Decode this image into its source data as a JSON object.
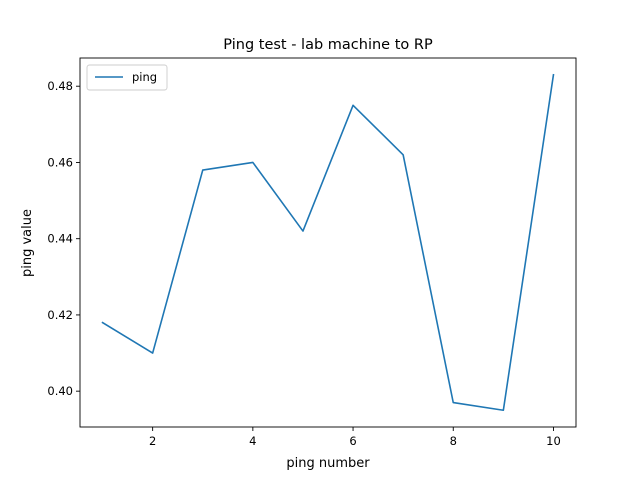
{
  "chart_data": {
    "type": "line",
    "title": "Ping test - lab machine to RP",
    "xlabel": "ping number",
    "ylabel": "ping value",
    "x": [
      1,
      2,
      3,
      4,
      5,
      6,
      7,
      8,
      9,
      10
    ],
    "series": [
      {
        "name": "ping",
        "values": [
          0.418,
          0.41,
          0.458,
          0.46,
          0.442,
          0.475,
          0.462,
          0.397,
          0.395,
          0.483
        ],
        "color": "#1f77b4"
      }
    ],
    "xlim": [
      0.55,
      10.45
    ],
    "ylim": [
      0.3906,
      0.4874
    ],
    "xticks": [
      2,
      4,
      6,
      8,
      10
    ],
    "xtick_labels": [
      "2",
      "4",
      "6",
      "8",
      "10"
    ],
    "yticks": [
      0.4,
      0.42,
      0.44,
      0.46,
      0.48
    ],
    "ytick_labels": [
      "0.40",
      "0.42",
      "0.44",
      "0.46",
      "0.48"
    ],
    "grid": false,
    "legend": {
      "position": "top-left",
      "entries": [
        "ping"
      ]
    }
  }
}
